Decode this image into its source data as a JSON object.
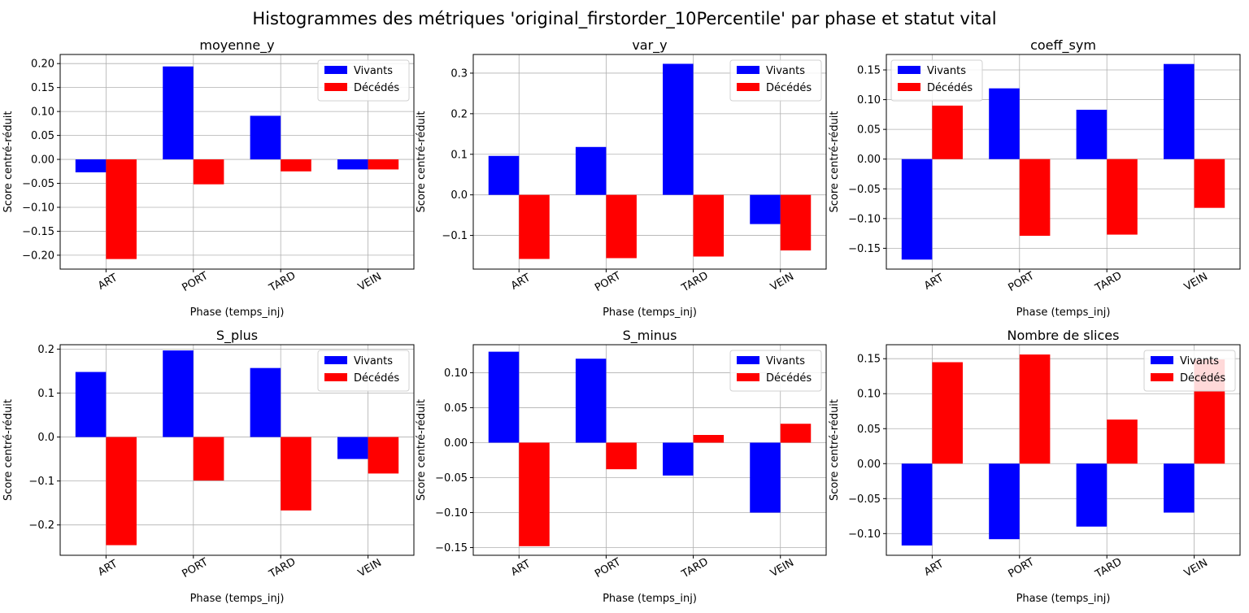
{
  "figure_title": "Histogrammes des métriques 'original_firstorder_10Percentile' par phase et statut vital",
  "colors": {
    "vivants": "#0000ff",
    "decedes": "#ff0000",
    "grid": "#b0b0b0"
  },
  "chart_data": [
    {
      "type": "bar",
      "title": "moyenne_y",
      "categories": [
        "ART",
        "PORT",
        "TARD",
        "VEIN"
      ],
      "xlabel": "Phase (temps_inj)",
      "ylabel": "Score centré-réduit",
      "ylim": [
        -0.229,
        0.219
      ],
      "yticks": [
        -0.2,
        -0.15,
        -0.1,
        -0.05,
        0.0,
        0.05,
        0.1,
        0.15,
        0.2
      ],
      "ytick_labels": [
        "−0.20",
        "−0.15",
        "−0.10",
        "−0.05",
        "0.00",
        "0.05",
        "0.10",
        "0.15",
        "0.20"
      ],
      "legend_position": "top-right",
      "series": [
        {
          "name": "Vivants",
          "values": [
            -0.027,
            0.194,
            0.091,
            -0.021
          ]
        },
        {
          "name": "Décédés",
          "values": [
            -0.208,
            -0.052,
            -0.025,
            -0.021
          ]
        }
      ]
    },
    {
      "type": "bar",
      "title": "var_y",
      "categories": [
        "ART",
        "PORT",
        "TARD",
        "VEIN"
      ],
      "xlabel": "Phase (temps_inj)",
      "ylabel": "Score centré-réduit",
      "ylim": [
        -0.183,
        0.346
      ],
      "yticks": [
        -0.1,
        0.0,
        0.1,
        0.2,
        0.3
      ],
      "ytick_labels": [
        "−0.1",
        "0.0",
        "0.1",
        "0.2",
        "0.3"
      ],
      "legend_position": "top-right",
      "series": [
        {
          "name": "Vivants",
          "values": [
            0.096,
            0.118,
            0.323,
            -0.072
          ]
        },
        {
          "name": "Décédés",
          "values": [
            -0.158,
            -0.156,
            -0.152,
            -0.137
          ]
        }
      ]
    },
    {
      "type": "bar",
      "title": "coeff_sym",
      "categories": [
        "ART",
        "PORT",
        "TARD",
        "VEIN"
      ],
      "xlabel": "Phase (temps_inj)",
      "ylabel": "Score centré-réduit",
      "ylim": [
        -0.185,
        0.176
      ],
      "yticks": [
        -0.15,
        -0.1,
        -0.05,
        0.0,
        0.05,
        0.1,
        0.15
      ],
      "ytick_labels": [
        "−0.15",
        "−0.10",
        "−0.05",
        "0.00",
        "0.05",
        "0.10",
        "0.15"
      ],
      "legend_position": "top-left",
      "series": [
        {
          "name": "Vivants",
          "values": [
            -0.169,
            0.119,
            0.083,
            0.16
          ]
        },
        {
          "name": "Décédés",
          "values": [
            0.09,
            -0.129,
            -0.127,
            -0.082
          ]
        }
      ]
    },
    {
      "type": "bar",
      "title": "S_plus",
      "categories": [
        "ART",
        "PORT",
        "TARD",
        "VEIN"
      ],
      "xlabel": "Phase (temps_inj)",
      "ylabel": "Score centré-réduit",
      "ylim": [
        -0.269,
        0.21
      ],
      "yticks": [
        -0.2,
        -0.1,
        0.0,
        0.1,
        0.2
      ],
      "ytick_labels": [
        "−0.2",
        "−0.1",
        "0.0",
        "0.1",
        "0.2"
      ],
      "legend_position": "top-right",
      "series": [
        {
          "name": "Vivants",
          "values": [
            0.148,
            0.197,
            0.157,
            -0.05
          ]
        },
        {
          "name": "Décédés",
          "values": [
            -0.246,
            -0.099,
            -0.167,
            -0.083
          ]
        }
      ]
    },
    {
      "type": "bar",
      "title": "S_minus",
      "categories": [
        "ART",
        "PORT",
        "TARD",
        "VEIN"
      ],
      "xlabel": "Phase (temps_inj)",
      "ylabel": "Score centré-réduit",
      "ylim": [
        -0.161,
        0.14
      ],
      "yticks": [
        -0.15,
        -0.1,
        -0.05,
        0.0,
        0.05,
        0.1
      ],
      "ytick_labels": [
        "−0.15",
        "−0.10",
        "−0.05",
        "0.00",
        "0.05",
        "0.10"
      ],
      "legend_position": "top-right",
      "series": [
        {
          "name": "Vivants",
          "values": [
            0.13,
            0.12,
            -0.047,
            -0.1
          ]
        },
        {
          "name": "Décédés",
          "values": [
            -0.148,
            -0.038,
            0.011,
            0.027
          ]
        }
      ]
    },
    {
      "type": "bar",
      "title": "Nombre de slices",
      "categories": [
        "ART",
        "PORT",
        "TARD",
        "VEIN"
      ],
      "xlabel": "Phase (temps_inj)",
      "ylabel": "Score centré-réduit",
      "ylim": [
        -0.131,
        0.17
      ],
      "yticks": [
        -0.1,
        -0.05,
        0.0,
        0.05,
        0.1,
        0.15
      ],
      "ytick_labels": [
        "−0.10",
        "−0.05",
        "0.00",
        "0.05",
        "0.10",
        "0.15"
      ],
      "legend_position": "top-right",
      "series": [
        {
          "name": "Vivants",
          "values": [
            -0.117,
            -0.108,
            -0.09,
            -0.07
          ]
        },
        {
          "name": "Décédés",
          "values": [
            0.145,
            0.156,
            0.063,
            0.149
          ]
        }
      ]
    }
  ]
}
